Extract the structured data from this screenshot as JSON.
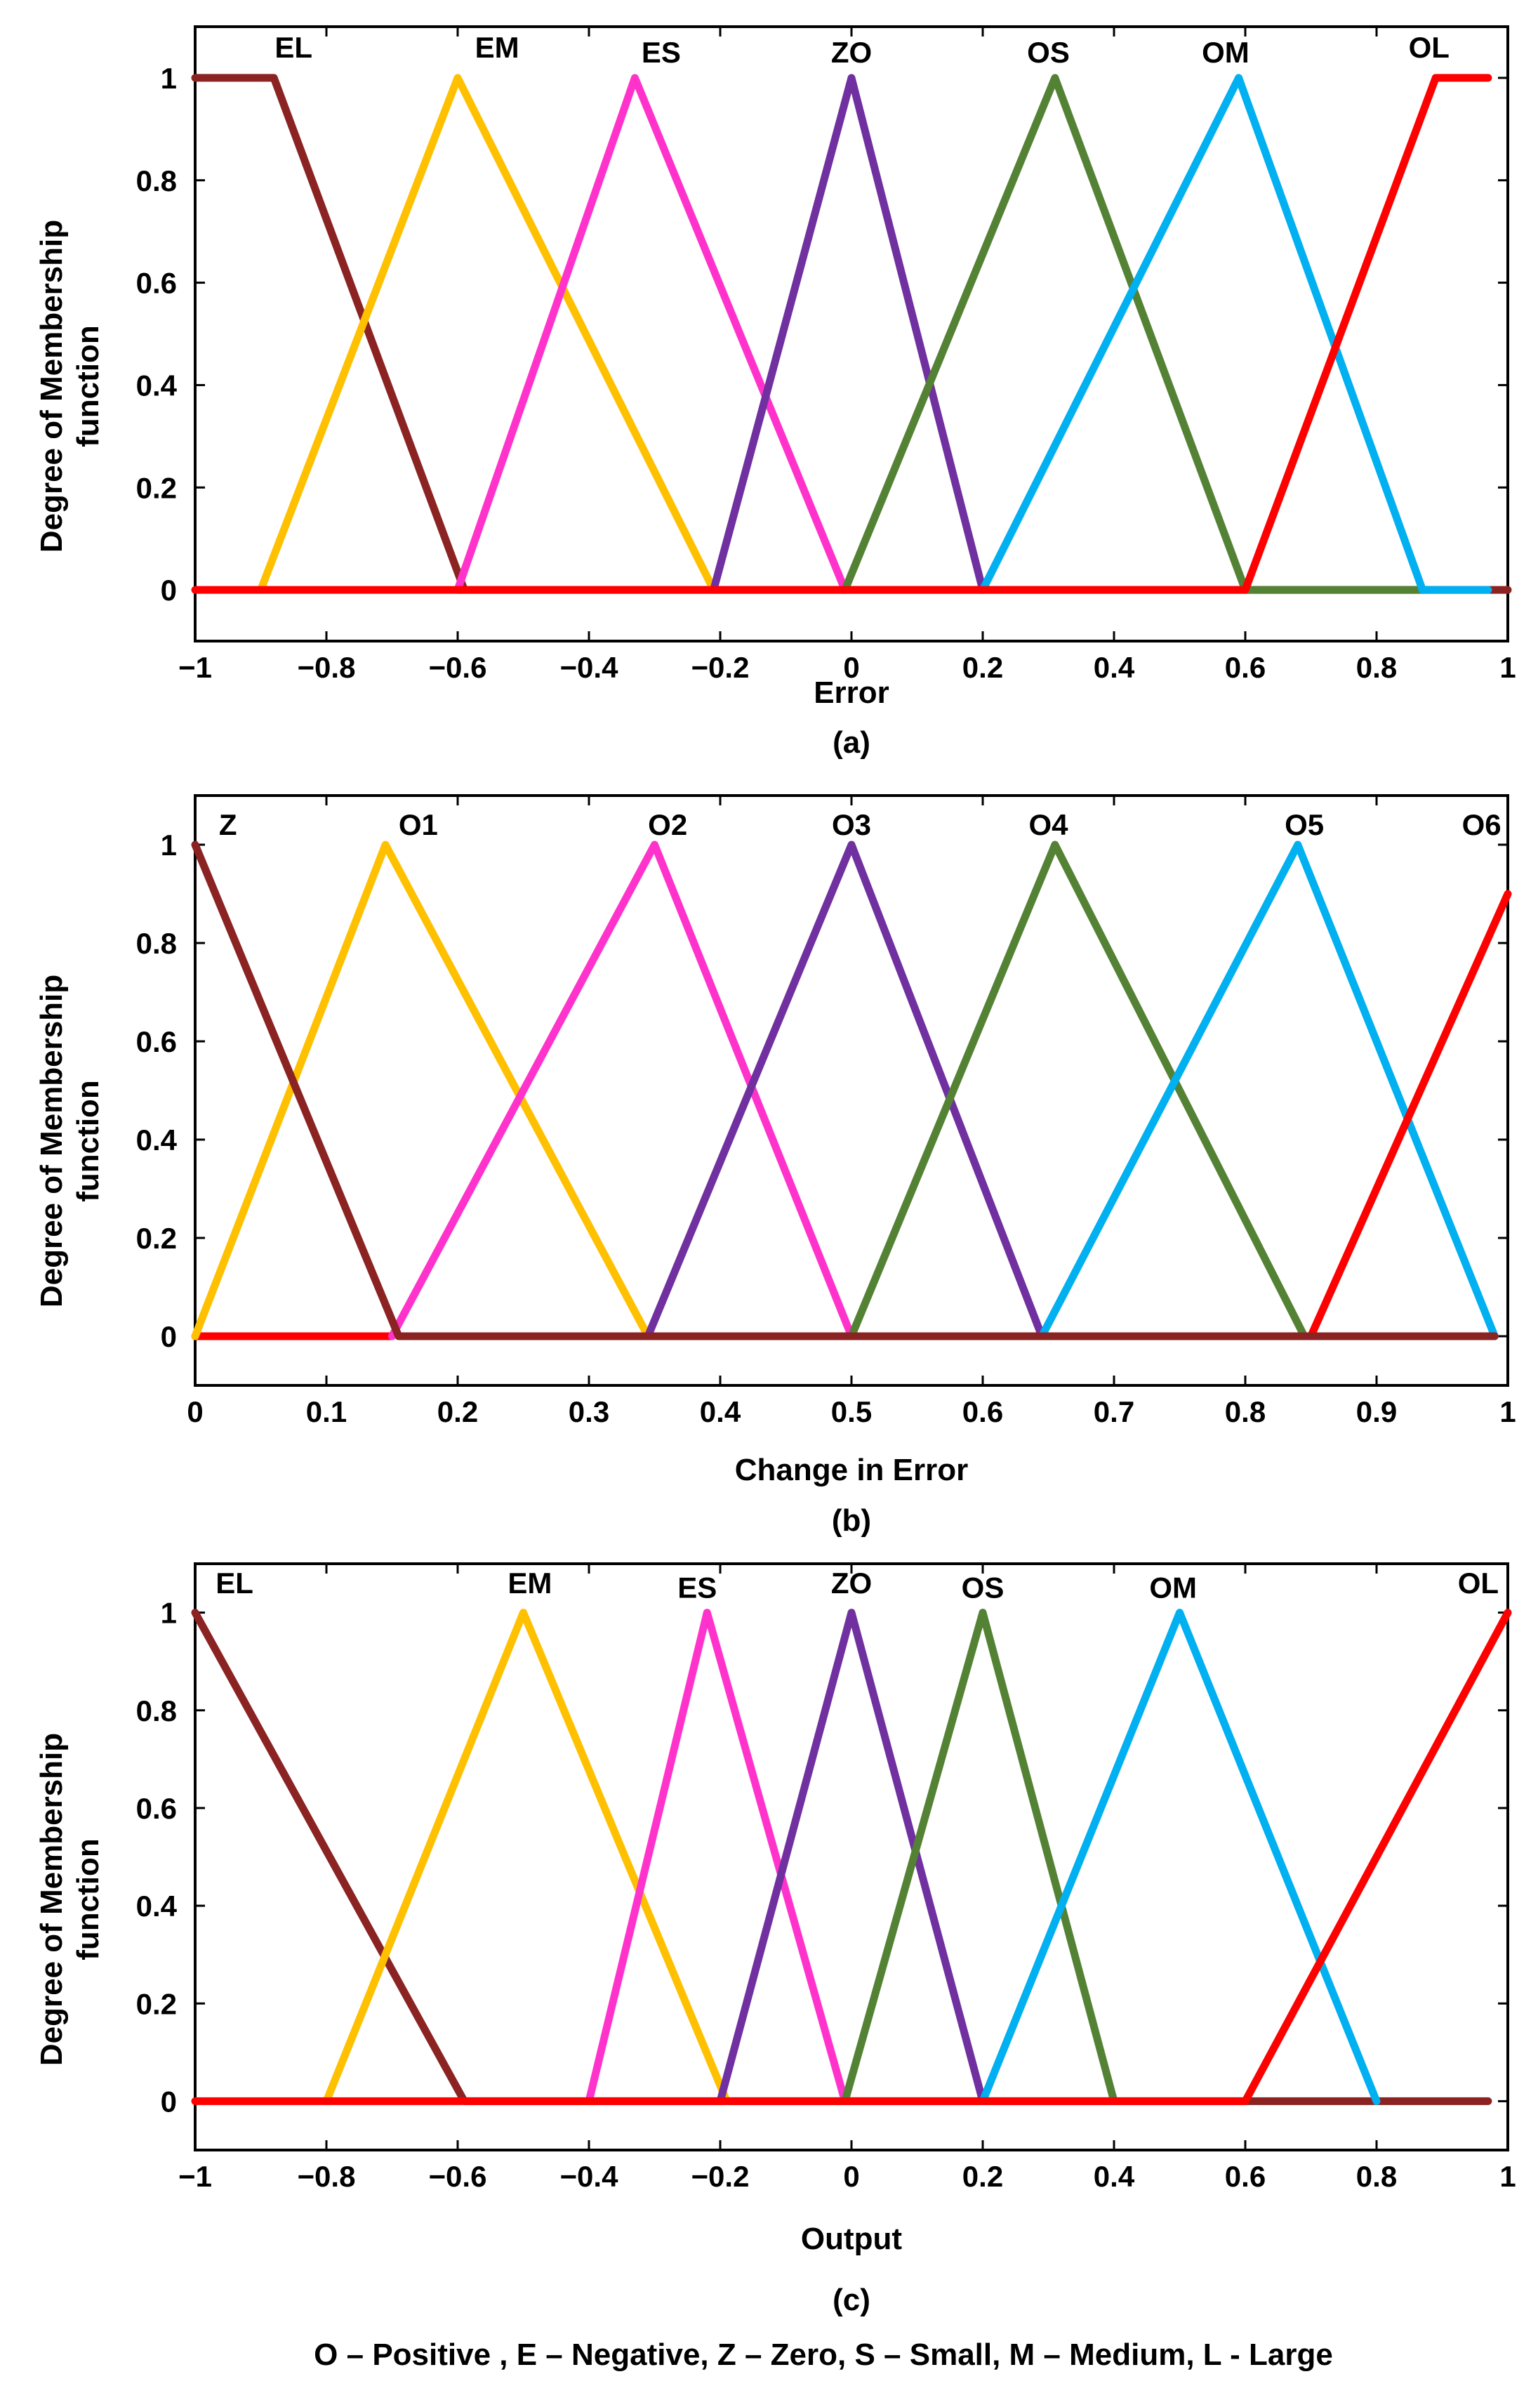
{
  "ylabel_line1": "Degree of Membership",
  "ylabel_line2": "function",
  "legend_note": "O – Positive , E – Negative, Z – Zero, S – Small, M – Medium, L - Large",
  "chart_data": [
    {
      "type": "line",
      "caption": "(a)",
      "xlabel": "Error",
      "ylabel": "Degree of Membership function",
      "xlim": [
        -1,
        1
      ],
      "ylim": [
        -0.1,
        1.1
      ],
      "xticks": [
        -1,
        -0.8,
        -0.6,
        -0.4,
        -0.2,
        0,
        0.2,
        0.4,
        0.6,
        0.8,
        1
      ],
      "xtick_labels": [
        "−1",
        "−0.8",
        "−0.6",
        "−0.4",
        "−0.2",
        "0",
        "0.2",
        "0.4",
        "0.6",
        "0.8",
        "1"
      ],
      "yticks": [
        0,
        0.2,
        0.4,
        0.6,
        0.8,
        1
      ],
      "ytick_labels": [
        "0",
        "0.2",
        "0.4",
        "0.6",
        "0.8",
        "1"
      ],
      "series": [
        {
          "name": "EL",
          "color": "#8b2323",
          "label_at": [
            -0.85,
            1.04
          ],
          "points": [
            [
              -1,
              1
            ],
            [
              -0.88,
              1
            ],
            [
              -0.59,
              0
            ],
            [
              -0.6,
              0
            ],
            [
              1,
              0
            ]
          ]
        },
        {
          "name": "EM",
          "color": "#ffc000",
          "label_at": [
            -0.54,
            1.04
          ],
          "points": [
            [
              -0.9,
              0
            ],
            [
              -0.6,
              1
            ],
            [
              -0.21,
              0
            ]
          ]
        },
        {
          "name": "ES",
          "color": "#ff33cc",
          "label_at": [
            -0.29,
            1.03
          ],
          "points": [
            [
              -0.6,
              0
            ],
            [
              -0.33,
              1
            ],
            [
              -0.01,
              0
            ]
          ]
        },
        {
          "name": "ZO",
          "color": "#7030a0",
          "label_at": [
            0.0,
            1.03
          ],
          "points": [
            [
              -0.21,
              0
            ],
            [
              0.0,
              1
            ],
            [
              0.2,
              0
            ]
          ]
        },
        {
          "name": "OS",
          "color": "#548235",
          "label_at": [
            0.3,
            1.03
          ],
          "points": [
            [
              -0.01,
              0
            ],
            [
              0.31,
              1
            ],
            [
              0.6,
              0
            ],
            [
              0.87,
              0
            ]
          ]
        },
        {
          "name": "OM",
          "color": "#00b0f0",
          "label_at": [
            0.57,
            1.03
          ],
          "points": [
            [
              0.2,
              0
            ],
            [
              0.59,
              1
            ],
            [
              0.87,
              0
            ],
            [
              0.97,
              0
            ]
          ]
        },
        {
          "name": "OL",
          "color": "#ff0000",
          "label_at": [
            0.88,
            1.04
          ],
          "points": [
            [
              -1,
              0
            ],
            [
              0.6,
              0
            ],
            [
              0.89,
              1
            ],
            [
              0.97,
              1
            ]
          ]
        }
      ]
    },
    {
      "type": "line",
      "caption": "(b)",
      "xlabel": "Change in Error",
      "ylabel": "Degree of Membership function",
      "xlim": [
        0,
        1
      ],
      "ylim": [
        -0.1,
        1.1
      ],
      "xticks": [
        0,
        0.1,
        0.2,
        0.3,
        0.4,
        0.5,
        0.6,
        0.7,
        0.8,
        0.9,
        1
      ],
      "xtick_labels": [
        "0",
        "0.1",
        "0.2",
        "0.3",
        "0.4",
        "0.5",
        "0.6",
        "0.7",
        "0.8",
        "0.9",
        "1"
      ],
      "yticks": [
        0,
        0.2,
        0.4,
        0.6,
        0.8,
        1
      ],
      "ytick_labels": [
        "0",
        "0.2",
        "0.4",
        "0.6",
        "0.8",
        "1"
      ],
      "series": [
        {
          "name": "Z",
          "color": "#ff0000",
          "label_at": [
            0.025,
            1.02
          ],
          "points": [
            [
              0,
              0
            ],
            [
              0.15,
              0
            ]
          ]
        },
        {
          "name": "O1",
          "color": "#ffc000",
          "label_at": [
            0.17,
            1.02
          ],
          "points": [
            [
              0,
              0
            ],
            [
              0.145,
              1
            ],
            [
              0.345,
              0
            ]
          ]
        },
        {
          "name": "O2",
          "color": "#ff33cc",
          "label_at": [
            0.36,
            1.02
          ],
          "points": [
            [
              0.15,
              0
            ],
            [
              0.35,
              1
            ],
            [
              0.5,
              0
            ]
          ]
        },
        {
          "name": "O3",
          "color": "#7030a0",
          "label_at": [
            0.5,
            1.02
          ],
          "points": [
            [
              0.345,
              0
            ],
            [
              0.5,
              1
            ],
            [
              0.645,
              0
            ]
          ]
        },
        {
          "name": "O4",
          "color": "#548235",
          "label_at": [
            0.65,
            1.02
          ],
          "points": [
            [
              0.5,
              0
            ],
            [
              0.655,
              1
            ],
            [
              0.845,
              0
            ]
          ]
        },
        {
          "name": "O5",
          "color": "#00b0f0",
          "label_at": [
            0.845,
            1.02
          ],
          "points": [
            [
              0.645,
              0
            ],
            [
              0.84,
              1
            ],
            [
              0.99,
              0
            ]
          ]
        },
        {
          "name": "O6",
          "color": "#ff0000",
          "label_at": [
            0.98,
            1.02
          ],
          "points": [
            [
              0.85,
              0
            ],
            [
              1,
              0.9
            ]
          ]
        },
        {
          "name": "",
          "color": "#8b2323",
          "label_at": null,
          "points": [
            [
              0,
              1
            ],
            [
              0.155,
              0
            ],
            [
              0.99,
              0
            ]
          ]
        }
      ]
    },
    {
      "type": "line",
      "caption": "(c)",
      "xlabel": "Output",
      "ylabel": "Degree of Membership function",
      "xlim": [
        -1,
        1
      ],
      "ylim": [
        -0.1,
        1.1
      ],
      "xticks": [
        -1,
        -0.8,
        -0.6,
        -0.4,
        -0.2,
        0,
        0.2,
        0.4,
        0.6,
        0.8,
        1
      ],
      "xtick_labels": [
        "−1",
        "−0.8",
        "−0.6",
        "−0.4",
        "−0.2",
        "0",
        "0.2",
        "0.4",
        "0.6",
        "0.8",
        "1"
      ],
      "yticks": [
        0,
        0.2,
        0.4,
        0.6,
        0.8,
        1
      ],
      "ytick_labels": [
        "0",
        "0.2",
        "0.4",
        "0.6",
        "0.8",
        "1"
      ],
      "series": [
        {
          "name": "EL",
          "color": "#8b2323",
          "label_at": [
            -0.94,
            1.04
          ],
          "points": [
            [
              -1,
              1
            ],
            [
              -0.59,
              0
            ],
            [
              0.97,
              0
            ]
          ]
        },
        {
          "name": "EM",
          "color": "#ffc000",
          "label_at": [
            -0.49,
            1.04
          ],
          "points": [
            [
              -0.8,
              0
            ],
            [
              -0.5,
              1
            ],
            [
              -0.19,
              0
            ]
          ]
        },
        {
          "name": "ES",
          "color": "#ff33cc",
          "label_at": [
            -0.235,
            1.03
          ],
          "points": [
            [
              -0.4,
              0
            ],
            [
              -0.22,
              1
            ],
            [
              -0.01,
              0
            ]
          ]
        },
        {
          "name": "ZO",
          "color": "#7030a0",
          "label_at": [
            0.0,
            1.04
          ],
          "points": [
            [
              -0.2,
              0
            ],
            [
              0.0,
              1
            ],
            [
              0.2,
              0
            ]
          ]
        },
        {
          "name": "OS",
          "color": "#548235",
          "label_at": [
            0.2,
            1.03
          ],
          "points": [
            [
              -0.01,
              0
            ],
            [
              0.2,
              1
            ],
            [
              0.4,
              0
            ]
          ]
        },
        {
          "name": "OM",
          "color": "#00b0f0",
          "label_at": [
            0.49,
            1.03
          ],
          "points": [
            [
              0.2,
              0
            ],
            [
              0.5,
              1
            ],
            [
              0.8,
              0
            ]
          ]
        },
        {
          "name": "OL",
          "color": "#ff0000",
          "label_at": [
            0.955,
            1.04
          ],
          "points": [
            [
              -1,
              0
            ],
            [
              0.6,
              0
            ],
            [
              1,
              1
            ]
          ]
        }
      ]
    }
  ]
}
